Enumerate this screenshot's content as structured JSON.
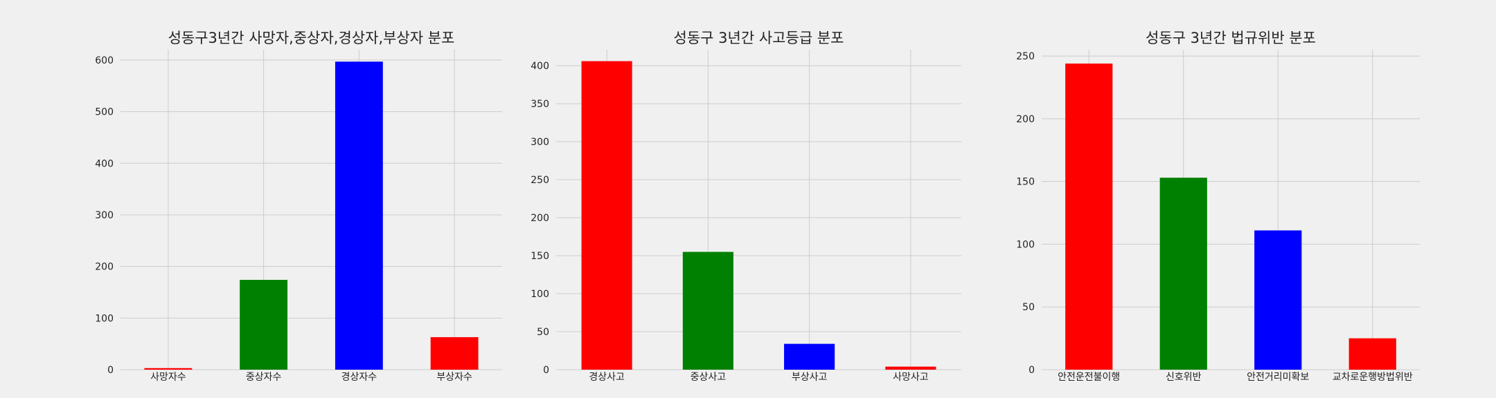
{
  "chart_data": [
    {
      "type": "bar",
      "title": "성동구3년간 사망자,중상자,경상자,부상자 분포",
      "categories": [
        "사망자수",
        "중상자수",
        "경상자수",
        "부상자수"
      ],
      "values": [
        3,
        174,
        597,
        63
      ],
      "colors": [
        "#ff0000",
        "#008000",
        "#0000ff",
        "#ff0000"
      ],
      "ylim": [
        0,
        620
      ],
      "yticks": [
        0,
        100,
        200,
        300,
        400,
        500,
        600
      ],
      "xlabel": "",
      "ylabel": "",
      "grid": true
    },
    {
      "type": "bar",
      "title": "성동구 3년간 사고등급 분포",
      "categories": [
        "경상사고",
        "중상사고",
        "부상사고",
        "사망사고"
      ],
      "values": [
        406,
        155,
        34,
        4
      ],
      "colors": [
        "#ff0000",
        "#008000",
        "#0000ff",
        "#ff0000"
      ],
      "ylim": [
        0,
        421
      ],
      "yticks": [
        0,
        50,
        100,
        150,
        200,
        250,
        300,
        350,
        400
      ],
      "xlabel": "",
      "ylabel": "",
      "grid": true
    },
    {
      "type": "bar",
      "title": "성동구 3년간 법규위반 분포",
      "categories": [
        "안전운전불이행",
        "신호위반",
        "안전거리미확보",
        "교차로운행방법위반"
      ],
      "values": [
        244,
        153,
        111,
        25
      ],
      "colors": [
        "#ff0000",
        "#008000",
        "#0000ff",
        "#ff0000"
      ],
      "ylim": [
        0,
        255
      ],
      "yticks": [
        0,
        50,
        100,
        150,
        200,
        250
      ],
      "xlabel": "",
      "ylabel": "",
      "grid": true
    }
  ]
}
